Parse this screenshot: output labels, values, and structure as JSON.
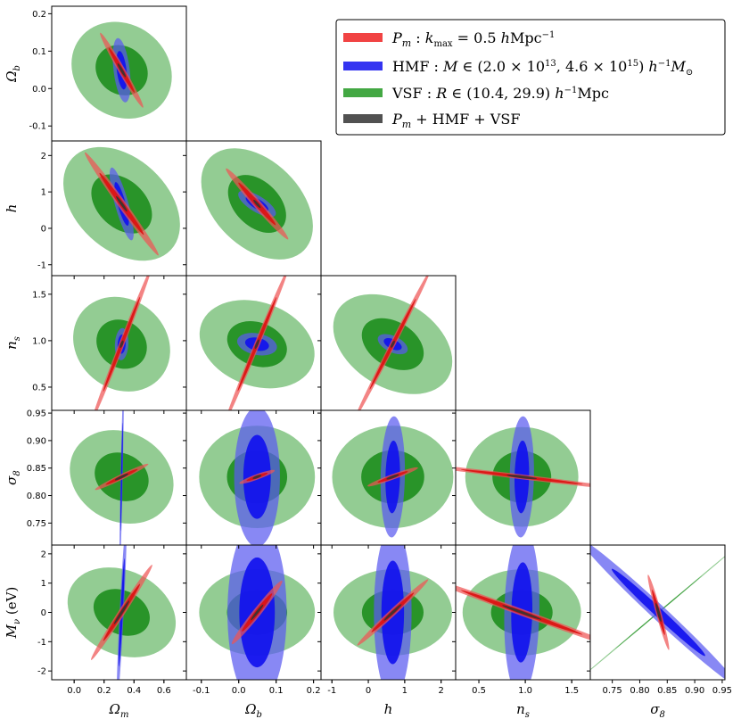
{
  "chart_data": {
    "type": "corner-plot",
    "params": [
      {
        "label": "Ω_m",
        "ticks": [
          "0.0",
          "0.2",
          "0.4",
          "0.6"
        ],
        "tick_values": [
          0.0,
          0.2,
          0.4,
          0.6
        ],
        "range": [
          -0.15,
          0.75
        ]
      },
      {
        "label": "Ω_b",
        "ticks": [
          "-0.1",
          "0.0",
          "0.1",
          "0.2"
        ],
        "tick_values": [
          -0.1,
          0.0,
          0.1,
          0.2
        ],
        "range": [
          -0.14,
          0.22
        ]
      },
      {
        "label": "h",
        "ticks": [
          "-1",
          "0",
          "1",
          "2"
        ],
        "tick_values": [
          -1,
          0,
          1,
          2
        ],
        "range": [
          -1.3,
          2.4
        ]
      },
      {
        "label": "n_s",
        "ticks": [
          "0.5",
          "1.0",
          "1.5"
        ],
        "tick_values": [
          0.5,
          1.0,
          1.5
        ],
        "range": [
          0.25,
          1.7
        ]
      },
      {
        "label": "σ_8",
        "ticks": [
          "0.75",
          "0.80",
          "0.85",
          "0.90",
          "0.95"
        ],
        "tick_values": [
          0.75,
          0.8,
          0.85,
          0.9,
          0.95
        ],
        "range": [
          0.71,
          0.955
        ]
      },
      {
        "label": "M_ν (eV)",
        "ticks": [
          "-2",
          "-1",
          "0",
          "1",
          "2"
        ],
        "tick_values": [
          -2,
          -1,
          0,
          1,
          2
        ],
        "range": [
          -2.3,
          2.3
        ]
      }
    ],
    "fiducial": [
      0.3175,
      0.049,
      0.6711,
      0.9624,
      0.834,
      0.0
    ],
    "series": [
      {
        "name": "P_m : k_max = 0.5 hMpc^-1",
        "color": "#ee2222"
      },
      {
        "name": "HMF : M ∈ (2.0 × 10^13, 4.6 × 10^15) h^-1 M_⊙",
        "color": "#1111ee"
      },
      {
        "name": "VSF : R ∈ (10.4, 29.9) h^-1 Mpc",
        "color": "#229922"
      },
      {
        "name": "P_m + HMF + VSF",
        "color": "#333333"
      }
    ],
    "legend_position": "top-right",
    "ellipses": [
      {
        "pair": [
          0,
          1
        ],
        "vsf": {
          "a": 0.39,
          "b": 0.34,
          "t": -0.65
        },
        "hmf": {
          "a": 0.24,
          "b": 0.06,
          "t": -1.45
        },
        "pm": {
          "a": 0.32,
          "b": 0.025,
          "t": -1.05
        }
      },
      {
        "pair": [
          0,
          2
        ],
        "vsf": {
          "a": 0.5,
          "b": 0.34,
          "t": -0.75
        },
        "hmf": {
          "a": 0.28,
          "b": 0.05,
          "t": -1.3
        },
        "pm": {
          "a": 0.47,
          "b": 0.03,
          "t": -0.95
        }
      },
      {
        "pair": [
          1,
          2
        ],
        "vsf": {
          "a": 0.49,
          "b": 0.32,
          "t": -0.78
        },
        "hmf": {
          "a": 0.16,
          "b": 0.06,
          "t": -0.55
        },
        "pm": {
          "a": 0.35,
          "b": 0.03,
          "t": -0.85
        }
      },
      {
        "pair": [
          0,
          3
        ],
        "vsf": {
          "a": 0.38,
          "b": 0.33,
          "t": -0.7
        },
        "hmf": {
          "a": 0.12,
          "b": 0.05,
          "t": 1.52
        },
        "pm": {
          "a": 0.63,
          "b": 0.02,
          "t": 1.2
        }
      },
      {
        "pair": [
          1,
          3
        ],
        "vsf": {
          "a": 0.44,
          "b": 0.31,
          "t": -0.35
        },
        "hmf": {
          "a": 0.15,
          "b": 0.08,
          "t": -0.2
        },
        "pm": {
          "a": 0.63,
          "b": 0.02,
          "t": 1.18
        }
      },
      {
        "pair": [
          2,
          3
        ],
        "vsf": {
          "a": 0.48,
          "b": 0.32,
          "t": -0.55
        },
        "hmf": {
          "a": 0.12,
          "b": 0.06,
          "t": -0.45
        },
        "pm": {
          "a": 0.63,
          "b": 0.02,
          "t": 1.1
        }
      },
      {
        "pair": [
          0,
          4
        ],
        "vsf": {
          "a": 0.4,
          "b": 0.33,
          "t": -0.5
        },
        "hmf": {
          "a": 0.67,
          "b": 0.008,
          "t": 1.55
        },
        "pm": {
          "a": 0.22,
          "b": 0.02,
          "t": 0.45
        }
      },
      {
        "pair": [
          1,
          4
        ],
        "vsf": {
          "a": 0.43,
          "b": 0.38,
          "t": 0
        },
        "hmf": {
          "a": 0.52,
          "b": 0.17,
          "t": 1.57
        },
        "pm": {
          "a": 0.14,
          "b": 0.02,
          "t": 0.35
        }
      },
      {
        "pair": [
          2,
          4
        ],
        "vsf": {
          "a": 0.45,
          "b": 0.38,
          "t": 0
        },
        "hmf": {
          "a": 0.45,
          "b": 0.09,
          "t": 1.55
        },
        "pm": {
          "a": 0.2,
          "b": 0.02,
          "t": 0.35
        }
      },
      {
        "pair": [
          3,
          4
        ],
        "vsf": {
          "a": 0.42,
          "b": 0.37,
          "t": 0
        },
        "hmf": {
          "a": 0.45,
          "b": 0.09,
          "t": 1.55
        },
        "pm": {
          "a": 0.76,
          "b": 0.018,
          "t": -0.12
        }
      },
      {
        "pair": [
          0,
          5
        ],
        "vsf": {
          "a": 0.42,
          "b": 0.31,
          "t": -0.45
        },
        "hmf": {
          "a": 0.67,
          "b": 0.015,
          "t": 1.52
        },
        "pm": {
          "a": 0.42,
          "b": 0.025,
          "t": 1.0
        }
      },
      {
        "pair": [
          1,
          5
        ],
        "vsf": {
          "a": 0.43,
          "b": 0.32,
          "t": 0
        },
        "hmf": {
          "a": 0.68,
          "b": 0.22,
          "t": 1.57
        },
        "pm": {
          "a": 0.3,
          "b": 0.03,
          "t": 0.9
        }
      },
      {
        "pair": [
          2,
          5
        ],
        "vsf": {
          "a": 0.44,
          "b": 0.32,
          "t": 0
        },
        "hmf": {
          "a": 0.64,
          "b": 0.14,
          "t": 1.57
        },
        "pm": {
          "a": 0.36,
          "b": 0.025,
          "t": 0.75
        }
      },
      {
        "pair": [
          3,
          5
        ],
        "vsf": {
          "a": 0.44,
          "b": 0.32,
          "t": 0
        },
        "hmf": {
          "a": 0.62,
          "b": 0.13,
          "t": 1.55
        },
        "pm": {
          "a": 0.8,
          "b": 0.025,
          "t": -0.35
        }
      },
      {
        "pair": [
          4,
          5
        ],
        "vsf": {
          "a": 0.81,
          "b": 0.005,
          "t": 0.7
        },
        "hmf": {
          "a": 0.79,
          "b": 0.055,
          "t": -0.75
        },
        "pm": {
          "a": 0.29,
          "b": 0.02,
          "t": -1.3
        }
      }
    ]
  }
}
